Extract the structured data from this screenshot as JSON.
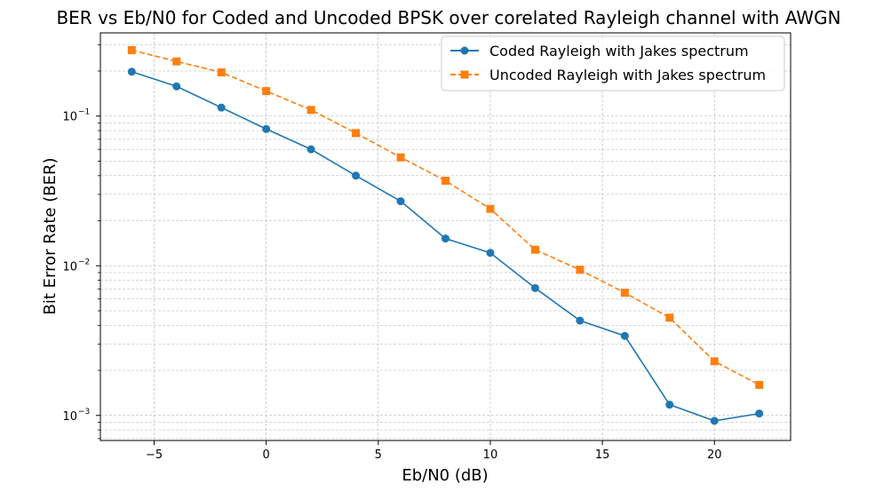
{
  "chart_data": {
    "type": "line",
    "title": "BER vs Eb/N0 for Coded and Uncoded BPSK over corelated Rayleigh channel with AWGN",
    "xlabel": "Eb/N0 (dB)",
    "ylabel": "Bit Error Rate (BER)",
    "xlim": [
      -7.4,
      23.4
    ],
    "ylim": [
      0.00068,
      0.36
    ],
    "yscale": "log",
    "grid": true,
    "legend_position": "top-right",
    "x": [
      -6,
      -4,
      -2,
      0,
      2,
      4,
      6,
      8,
      10,
      12,
      14,
      16,
      18,
      20,
      22
    ],
    "x_ticks": [
      {
        "value": -5,
        "label": "−5"
      },
      {
        "value": 0,
        "label": "0"
      },
      {
        "value": 5,
        "label": "5"
      },
      {
        "value": 10,
        "label": "10"
      },
      {
        "value": 15,
        "label": "15"
      },
      {
        "value": 20,
        "label": "20"
      }
    ],
    "y_ticks": [
      {
        "value": 0.1,
        "base": "10",
        "exp": "−1"
      },
      {
        "value": 0.01,
        "base": "10",
        "exp": "−2"
      },
      {
        "value": 0.001,
        "base": "10",
        "exp": "−3"
      }
    ],
    "series": [
      {
        "name": "Coded Rayleigh with Jakes spectrum",
        "color": "#1f77b4",
        "marker": "circle",
        "linestyle": "solid",
        "values": [
          0.198,
          0.158,
          0.114,
          0.082,
          0.06,
          0.04,
          0.027,
          0.0152,
          0.0122,
          0.0071,
          0.0043,
          0.0034,
          0.00118,
          0.00092,
          0.00103
        ]
      },
      {
        "name": "Uncoded Rayleigh with Jakes spectrum",
        "color": "#ff7f0e",
        "marker": "square",
        "linestyle": "dashed",
        "values": [
          0.276,
          0.232,
          0.196,
          0.147,
          0.11,
          0.077,
          0.053,
          0.037,
          0.024,
          0.0128,
          0.0094,
          0.0066,
          0.0045,
          0.0023,
          0.0016
        ]
      }
    ]
  }
}
